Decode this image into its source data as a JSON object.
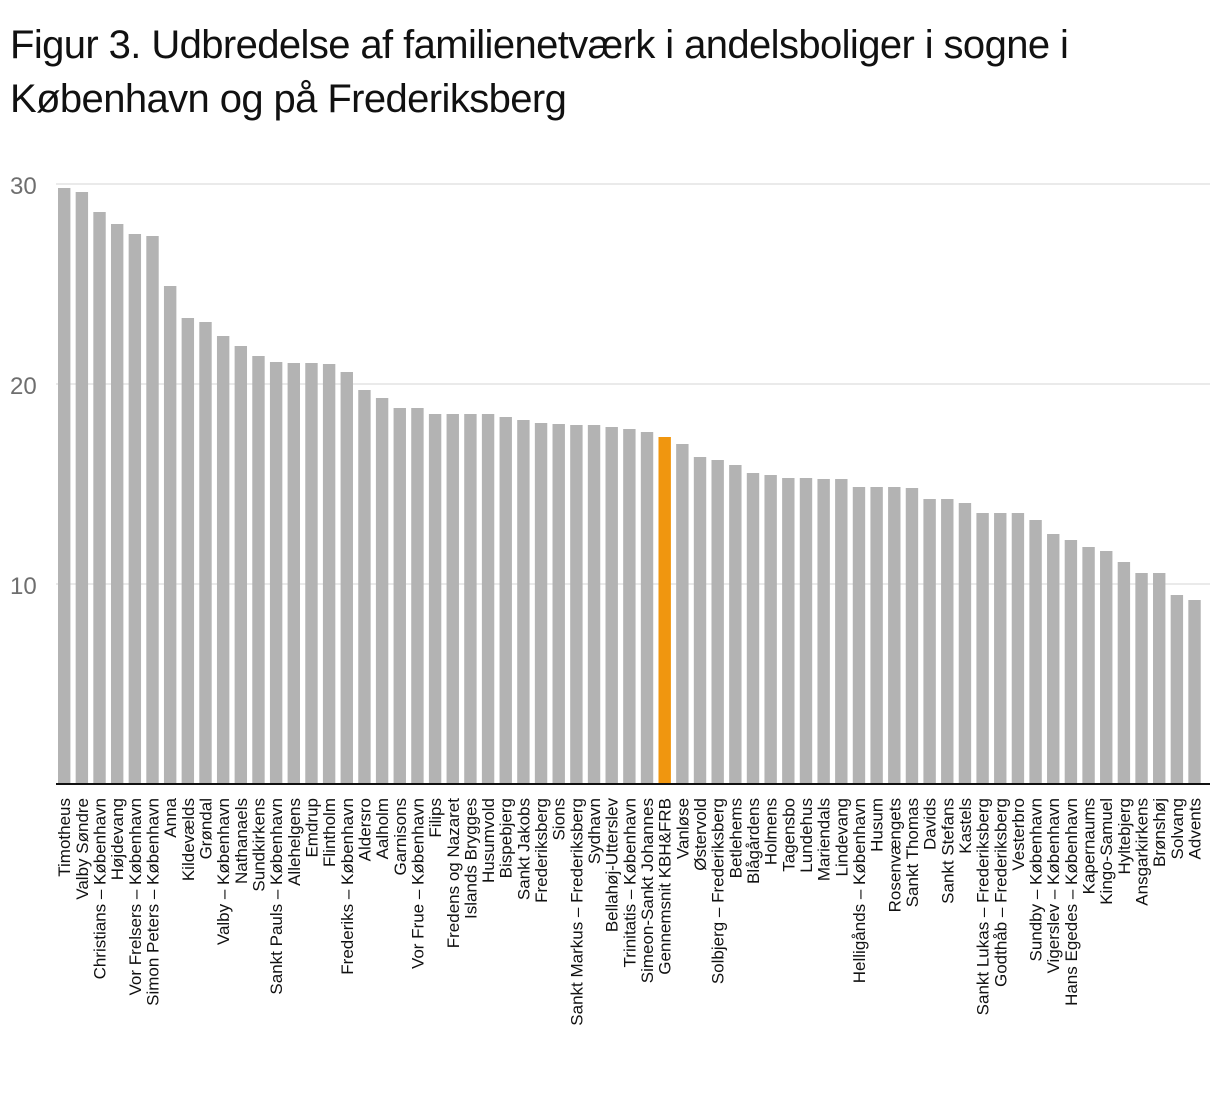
{
  "chart_data": {
    "type": "bar",
    "title": "Figur 3. Udbredelse af familienetværk i andelsboliger i sogne i København og på Frederiksberg",
    "xlabel": "",
    "ylabel": "",
    "ylim": [
      0,
      30
    ],
    "yticks": [
      10,
      20,
      30
    ],
    "grid": true,
    "highlight_category": "Gennemsnit KBH&FRB",
    "colors": {
      "bar": "#b3b3b3",
      "highlight": "#f0960f",
      "grid": "#e3e3e3",
      "axis": "#111111"
    },
    "categories": [
      "Timotheus",
      "Valby Søndre",
      "Christians – København",
      "Højdevang",
      "Vor Frelsers – København",
      "Simon Peters – København",
      "Anna",
      "Kildevælds",
      "Grøndal",
      "Valby – København",
      "Nathanaels",
      "Sundkirkens",
      "Sankt Pauls – København",
      "Allehelgens",
      "Emdrup",
      "Flintholm",
      "Frederiks – København",
      "Aldersro",
      "Aalholm",
      "Garnisons",
      "Vor Frue – København",
      "Filips",
      "Fredens og Nazaret",
      "Islands Brygges",
      "Husumvold",
      "Bispebjerg",
      "Sankt Jakobs",
      "Frederiksberg",
      "Sions",
      "Sankt Markus – Frederiksberg",
      "Sydhavn",
      "Bellahøj-Utterslev",
      "Trinitatis – København",
      "Simeon-Sankt Johannes",
      "Gennemsnit KBH&FRB",
      "Vanløse",
      "Østervold",
      "Solbjerg – Frederiksberg",
      "Betlehems",
      "Blågårdens",
      "Holmens",
      "Tagensbo",
      "Lundehus",
      "Mariendals",
      "Lindevang",
      "Helligånds – København",
      "Husum",
      "Rosenvængets",
      "Sankt Thomas",
      "Davids",
      "Sankt Stefans",
      "Kastels",
      "Sankt Lukas – Frederiksberg",
      "Godthåb – Frederiksberg",
      "Vesterbro",
      "Sundby – København",
      "Vigerslev – København",
      "Hans Egedes – København",
      "Kapernaums",
      "Kingo-Samuel",
      "Hyltebjerg",
      "Ansgarkirkens",
      "Brønshøj",
      "Solvang",
      "Advents"
    ],
    "values": [
      29.8,
      29.6,
      28.6,
      28.0,
      27.5,
      27.4,
      24.9,
      23.3,
      23.1,
      22.4,
      21.9,
      21.4,
      21.1,
      21.05,
      21.05,
      21.0,
      20.6,
      19.7,
      19.3,
      18.8,
      18.8,
      18.5,
      18.5,
      18.5,
      18.5,
      18.35,
      18.2,
      18.05,
      18.0,
      17.95,
      17.95,
      17.85,
      17.75,
      17.6,
      17.35,
      17.0,
      16.35,
      16.2,
      15.95,
      15.55,
      15.45,
      15.3,
      15.3,
      15.25,
      15.25,
      14.85,
      14.85,
      14.85,
      14.8,
      14.25,
      14.25,
      14.05,
      13.55,
      13.55,
      13.55,
      13.2,
      12.5,
      12.2,
      11.85,
      11.65,
      11.1,
      10.55,
      10.55,
      9.45,
      9.2
    ]
  }
}
